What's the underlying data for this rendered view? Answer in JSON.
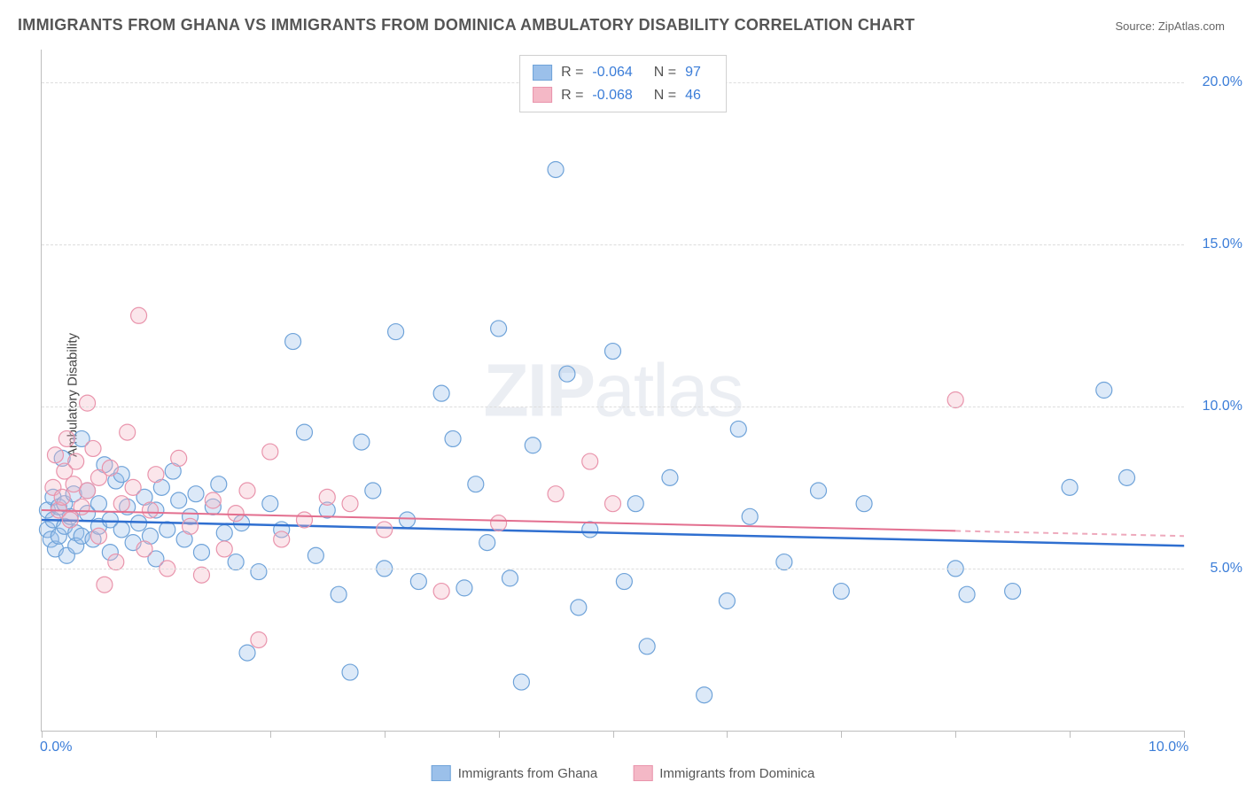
{
  "title": "IMMIGRANTS FROM GHANA VS IMMIGRANTS FROM DOMINICA AMBULATORY DISABILITY CORRELATION CHART",
  "source_label": "Source: ZipAtlas.com",
  "y_axis_title": "Ambulatory Disability",
  "watermark_bold": "ZIP",
  "watermark_light": "atlas",
  "chart": {
    "type": "scatter",
    "xlim": [
      0,
      10
    ],
    "ylim": [
      0,
      21
    ],
    "x_ticks": [
      0,
      1,
      2,
      3,
      4,
      5,
      6,
      7,
      8,
      9,
      10
    ],
    "x_tick_labels": {
      "0": "0.0%",
      "10": "10.0%"
    },
    "y_gridlines": [
      5,
      10,
      15,
      20
    ],
    "y_tick_labels": {
      "5": "5.0%",
      "10": "10.0%",
      "15": "15.0%",
      "20": "20.0%"
    },
    "background_color": "#ffffff",
    "grid_color": "#dddddd",
    "axis_color": "#bdbdbd",
    "axis_label_color": "#3b7dd8",
    "marker_radius": 9,
    "marker_opacity": 0.35,
    "series": [
      {
        "name": "Immigrants from Ghana",
        "color_fill": "#9bc0ea",
        "color_stroke": "#6fa3d9",
        "line_color": "#2f6fd0",
        "line_width": 2.5,
        "line_dash_after_x": 10,
        "trend": {
          "x1": 0,
          "y1": 6.5,
          "x2": 10,
          "y2": 5.7
        },
        "R_label": "R =",
        "R_value": "-0.064",
        "N_label": "N =",
        "N_value": "97",
        "points": [
          [
            0.05,
            6.2
          ],
          [
            0.05,
            6.8
          ],
          [
            0.08,
            5.9
          ],
          [
            0.1,
            6.5
          ],
          [
            0.1,
            7.2
          ],
          [
            0.12,
            5.6
          ],
          [
            0.15,
            6.0
          ],
          [
            0.15,
            6.9
          ],
          [
            0.18,
            8.4
          ],
          [
            0.2,
            6.3
          ],
          [
            0.2,
            7.0
          ],
          [
            0.22,
            5.4
          ],
          [
            0.25,
            6.6
          ],
          [
            0.28,
            7.3
          ],
          [
            0.3,
            6.1
          ],
          [
            0.3,
            5.7
          ],
          [
            0.35,
            6.0
          ],
          [
            0.35,
            9.0
          ],
          [
            0.4,
            6.7
          ],
          [
            0.4,
            7.4
          ],
          [
            0.45,
            5.9
          ],
          [
            0.5,
            7.0
          ],
          [
            0.5,
            6.3
          ],
          [
            0.55,
            8.2
          ],
          [
            0.6,
            6.5
          ],
          [
            0.6,
            5.5
          ],
          [
            0.65,
            7.7
          ],
          [
            0.7,
            6.2
          ],
          [
            0.7,
            7.9
          ],
          [
            0.75,
            6.9
          ],
          [
            0.8,
            5.8
          ],
          [
            0.85,
            6.4
          ],
          [
            0.9,
            7.2
          ],
          [
            0.95,
            6.0
          ],
          [
            1.0,
            6.8
          ],
          [
            1.0,
            5.3
          ],
          [
            1.05,
            7.5
          ],
          [
            1.1,
            6.2
          ],
          [
            1.15,
            8.0
          ],
          [
            1.2,
            7.1
          ],
          [
            1.25,
            5.9
          ],
          [
            1.3,
            6.6
          ],
          [
            1.35,
            7.3
          ],
          [
            1.4,
            5.5
          ],
          [
            1.5,
            6.9
          ],
          [
            1.55,
            7.6
          ],
          [
            1.6,
            6.1
          ],
          [
            1.7,
            5.2
          ],
          [
            1.75,
            6.4
          ],
          [
            1.8,
            2.4
          ],
          [
            1.9,
            4.9
          ],
          [
            2.0,
            7.0
          ],
          [
            2.1,
            6.2
          ],
          [
            2.2,
            12.0
          ],
          [
            2.3,
            9.2
          ],
          [
            2.4,
            5.4
          ],
          [
            2.5,
            6.8
          ],
          [
            2.6,
            4.2
          ],
          [
            2.7,
            1.8
          ],
          [
            2.8,
            8.9
          ],
          [
            2.9,
            7.4
          ],
          [
            3.0,
            5.0
          ],
          [
            3.1,
            12.3
          ],
          [
            3.2,
            6.5
          ],
          [
            3.3,
            4.6
          ],
          [
            3.5,
            10.4
          ],
          [
            3.6,
            9.0
          ],
          [
            3.7,
            4.4
          ],
          [
            3.8,
            7.6
          ],
          [
            3.9,
            5.8
          ],
          [
            4.0,
            12.4
          ],
          [
            4.1,
            4.7
          ],
          [
            4.2,
            1.5
          ],
          [
            4.3,
            8.8
          ],
          [
            4.5,
            17.3
          ],
          [
            4.6,
            11.0
          ],
          [
            4.7,
            3.8
          ],
          [
            4.8,
            6.2
          ],
          [
            5.0,
            11.7
          ],
          [
            5.1,
            4.6
          ],
          [
            5.2,
            7.0
          ],
          [
            5.3,
            2.6
          ],
          [
            5.5,
            7.8
          ],
          [
            5.8,
            1.1
          ],
          [
            6.0,
            4.0
          ],
          [
            6.1,
            9.3
          ],
          [
            6.2,
            6.6
          ],
          [
            6.5,
            5.2
          ],
          [
            6.8,
            7.4
          ],
          [
            7.0,
            4.3
          ],
          [
            7.2,
            7.0
          ],
          [
            8.0,
            5.0
          ],
          [
            8.1,
            4.2
          ],
          [
            8.5,
            4.3
          ],
          [
            9.0,
            7.5
          ],
          [
            9.3,
            10.5
          ],
          [
            9.5,
            7.8
          ]
        ]
      },
      {
        "name": "Immigrants from Dominica",
        "color_fill": "#f4b8c6",
        "color_stroke": "#e994ac",
        "line_color": "#e36f8f",
        "line_width": 2,
        "line_dash_after_x": 8.0,
        "trend": {
          "x1": 0,
          "y1": 6.8,
          "x2": 10,
          "y2": 6.0
        },
        "R_label": "R =",
        "R_value": "-0.068",
        "N_label": "N =",
        "N_value": "46",
        "points": [
          [
            0.1,
            7.5
          ],
          [
            0.12,
            8.5
          ],
          [
            0.15,
            6.8
          ],
          [
            0.18,
            7.2
          ],
          [
            0.2,
            8.0
          ],
          [
            0.22,
            9.0
          ],
          [
            0.25,
            6.5
          ],
          [
            0.28,
            7.6
          ],
          [
            0.3,
            8.3
          ],
          [
            0.35,
            6.9
          ],
          [
            0.4,
            7.4
          ],
          [
            0.4,
            10.1
          ],
          [
            0.45,
            8.7
          ],
          [
            0.5,
            6.0
          ],
          [
            0.5,
            7.8
          ],
          [
            0.55,
            4.5
          ],
          [
            0.6,
            8.1
          ],
          [
            0.65,
            5.2
          ],
          [
            0.7,
            7.0
          ],
          [
            0.75,
            9.2
          ],
          [
            0.8,
            7.5
          ],
          [
            0.85,
            12.8
          ],
          [
            0.9,
            5.6
          ],
          [
            0.95,
            6.8
          ],
          [
            1.0,
            7.9
          ],
          [
            1.1,
            5.0
          ],
          [
            1.2,
            8.4
          ],
          [
            1.3,
            6.3
          ],
          [
            1.4,
            4.8
          ],
          [
            1.5,
            7.1
          ],
          [
            1.6,
            5.6
          ],
          [
            1.7,
            6.7
          ],
          [
            1.8,
            7.4
          ],
          [
            1.9,
            2.8
          ],
          [
            2.0,
            8.6
          ],
          [
            2.1,
            5.9
          ],
          [
            2.3,
            6.5
          ],
          [
            2.5,
            7.2
          ],
          [
            2.7,
            7.0
          ],
          [
            3.0,
            6.2
          ],
          [
            3.5,
            4.3
          ],
          [
            4.0,
            6.4
          ],
          [
            4.5,
            7.3
          ],
          [
            4.8,
            8.3
          ],
          [
            5.0,
            7.0
          ],
          [
            8.0,
            10.2
          ]
        ]
      }
    ]
  }
}
